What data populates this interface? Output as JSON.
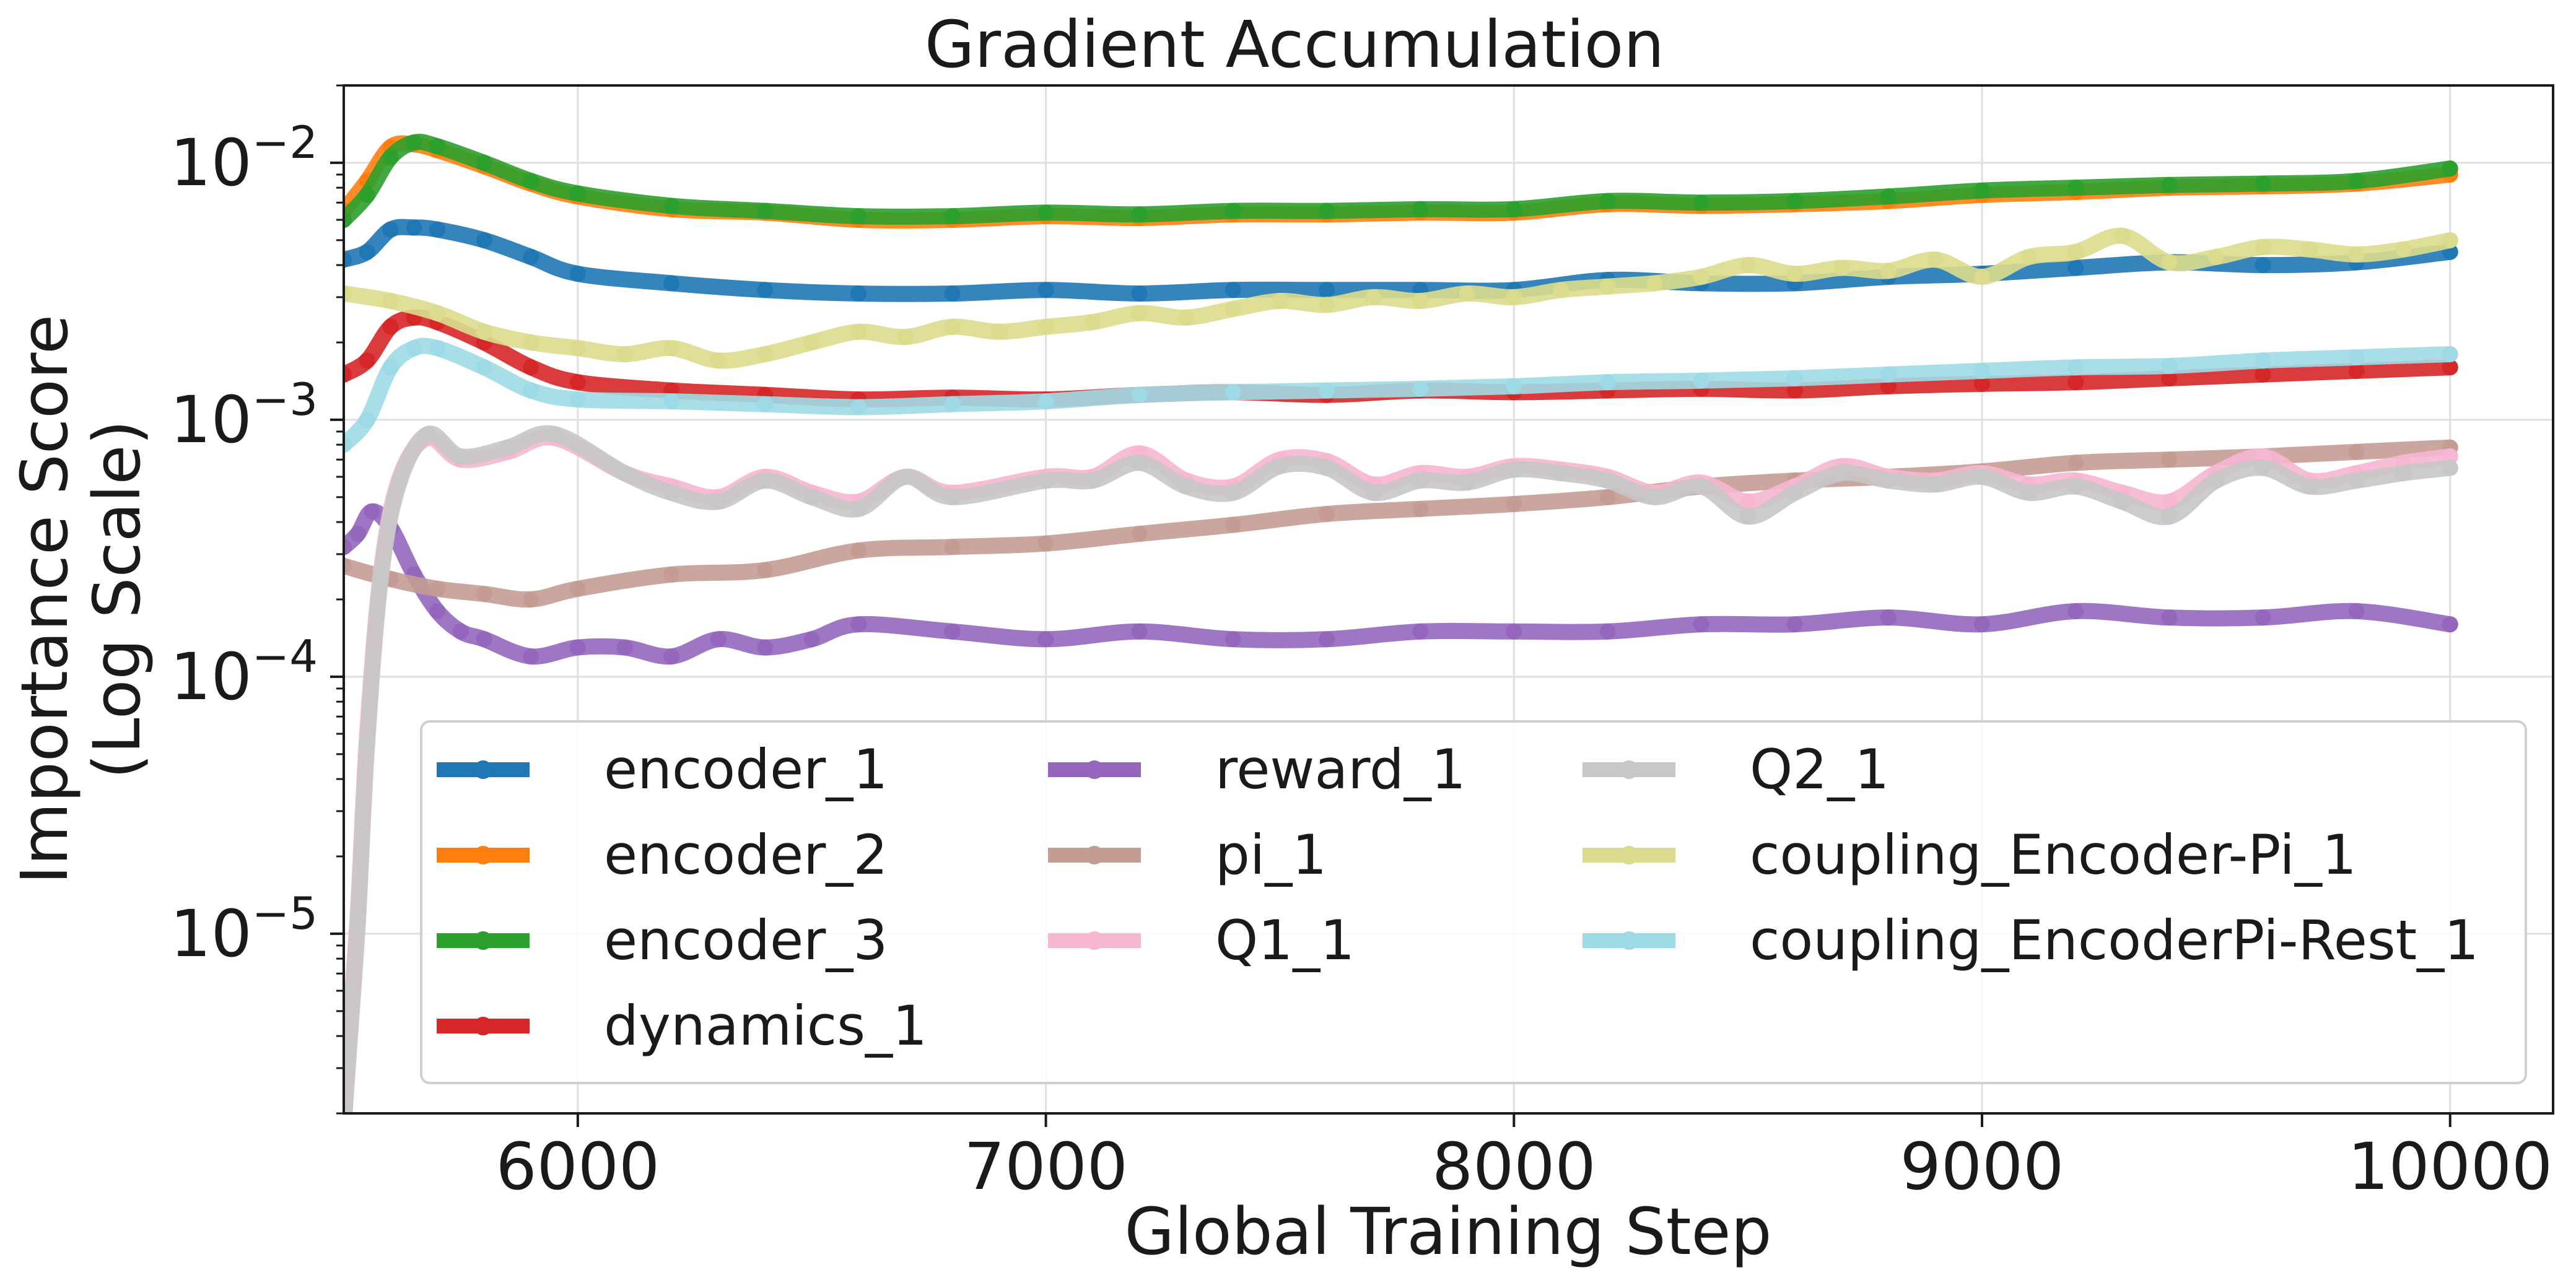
{
  "chart_data": {
    "type": "line",
    "title": "Gradient Accumulation",
    "xlabel": "Global Training Step",
    "ylabel": [
      "Importance Score",
      "(Log Scale)"
    ],
    "xlim": [
      5500,
      10220
    ],
    "ylim": [
      2e-06,
      0.02
    ],
    "yscale": "log",
    "grid": true,
    "legend": {
      "placement": "lower-center",
      "columns": 3
    },
    "x_ticks": [
      6000,
      7000,
      8000,
      9000,
      10000
    ],
    "y_ticks": [
      {
        "value": 0.01,
        "base": "10",
        "exp": "−2"
      },
      {
        "value": 0.001,
        "base": "10",
        "exp": "−3"
      },
      {
        "value": 0.0001,
        "base": "10",
        "exp": "−4"
      },
      {
        "value": 1e-05,
        "base": "10",
        "exp": "−5"
      }
    ],
    "series": [
      {
        "name": "encoder_1",
        "color": "#1f77b4",
        "x": [
          5500,
          5550,
          5600,
          5650,
          5700,
          5800,
          5900,
          6000,
          6200,
          6400,
          6600,
          6800,
          7000,
          7200,
          7400,
          7600,
          7800,
          8000,
          8200,
          8400,
          8600,
          8800,
          9000,
          9200,
          9400,
          9600,
          9800,
          10000
        ],
        "y": [
          0.0042,
          0.0045,
          0.0055,
          0.0056,
          0.0055,
          0.005,
          0.0043,
          0.0037,
          0.0034,
          0.0032,
          0.0031,
          0.0031,
          0.0032,
          0.0031,
          0.0032,
          0.0032,
          0.0032,
          0.0032,
          0.0035,
          0.0034,
          0.0034,
          0.0036,
          0.0037,
          0.0039,
          0.0041,
          0.004,
          0.0041,
          0.0045
        ]
      },
      {
        "name": "encoder_2",
        "color": "#ff7f0e",
        "x": [
          5500,
          5550,
          5600,
          5650,
          5700,
          5800,
          5900,
          6000,
          6200,
          6400,
          6600,
          6800,
          7000,
          7200,
          7400,
          7600,
          7800,
          8000,
          8200,
          8400,
          8600,
          8800,
          9000,
          9200,
          9400,
          9600,
          9800,
          10000
        ],
        "y": [
          0.0065,
          0.0085,
          0.0115,
          0.0118,
          0.0112,
          0.0097,
          0.0083,
          0.0074,
          0.0066,
          0.0064,
          0.006,
          0.006,
          0.0062,
          0.0061,
          0.0063,
          0.0063,
          0.0064,
          0.0064,
          0.0069,
          0.0068,
          0.0069,
          0.0071,
          0.0075,
          0.0077,
          0.008,
          0.0081,
          0.0083,
          0.009
        ]
      },
      {
        "name": "encoder_3",
        "color": "#2ca02c",
        "x": [
          5500,
          5550,
          5600,
          5650,
          5700,
          5800,
          5900,
          6000,
          6200,
          6400,
          6600,
          6800,
          7000,
          7200,
          7400,
          7600,
          7800,
          8000,
          8200,
          8400,
          8600,
          8800,
          9000,
          9200,
          9400,
          9600,
          9800,
          10000
        ],
        "y": [
          0.006,
          0.0075,
          0.0105,
          0.012,
          0.0116,
          0.01,
          0.0085,
          0.0076,
          0.0068,
          0.0065,
          0.0062,
          0.0062,
          0.0064,
          0.0063,
          0.0065,
          0.0065,
          0.0066,
          0.0066,
          0.0071,
          0.007,
          0.0071,
          0.0074,
          0.0078,
          0.008,
          0.0082,
          0.0083,
          0.0085,
          0.0095
        ]
      },
      {
        "name": "dynamics_1",
        "color": "#d62728",
        "x": [
          5500,
          5550,
          5600,
          5650,
          5700,
          5800,
          5900,
          6000,
          6200,
          6400,
          6600,
          6800,
          7000,
          7200,
          7400,
          7600,
          7800,
          8000,
          8200,
          8400,
          8600,
          8800,
          9000,
          9200,
          9400,
          9600,
          9800,
          10000
        ],
        "y": [
          0.0015,
          0.0017,
          0.0023,
          0.0025,
          0.0024,
          0.002,
          0.0016,
          0.0014,
          0.0013,
          0.00125,
          0.0012,
          0.00122,
          0.0012,
          0.00125,
          0.00128,
          0.00125,
          0.0013,
          0.00128,
          0.0013,
          0.00132,
          0.0013,
          0.00135,
          0.00138,
          0.0014,
          0.00145,
          0.0015,
          0.00155,
          0.0016
        ]
      },
      {
        "name": "reward_1",
        "color": "#9467bd",
        "x": [
          5500,
          5530,
          5560,
          5600,
          5650,
          5700,
          5750,
          5800,
          5900,
          6000,
          6100,
          6200,
          6300,
          6400,
          6500,
          6600,
          6800,
          7000,
          7200,
          7400,
          7600,
          7800,
          8000,
          8200,
          8400,
          8600,
          8800,
          9000,
          9200,
          9400,
          9600,
          9800,
          10000
        ],
        "y": [
          0.00032,
          0.00036,
          0.00044,
          0.00038,
          0.00025,
          0.00018,
          0.00015,
          0.00014,
          0.00012,
          0.00013,
          0.00013,
          0.00012,
          0.00014,
          0.00013,
          0.00014,
          0.00016,
          0.00015,
          0.00014,
          0.00015,
          0.00014,
          0.00014,
          0.00015,
          0.00015,
          0.00015,
          0.00016,
          0.00016,
          0.00017,
          0.00016,
          0.00018,
          0.00017,
          0.00017,
          0.00018,
          0.00016
        ]
      },
      {
        "name": "pi_1",
        "color": "#c49c94",
        "x": [
          5500,
          5600,
          5700,
          5800,
          5900,
          6000,
          6200,
          6400,
          6600,
          6800,
          7000,
          7200,
          7400,
          7600,
          7800,
          8000,
          8200,
          8400,
          8600,
          8800,
          9000,
          9200,
          9400,
          9600,
          9800,
          10000
        ],
        "y": [
          0.00027,
          0.00024,
          0.00022,
          0.00021,
          0.0002,
          0.00022,
          0.00025,
          0.00026,
          0.00031,
          0.00032,
          0.00033,
          0.00036,
          0.00039,
          0.00043,
          0.00045,
          0.00047,
          0.0005,
          0.00055,
          0.00058,
          0.0006,
          0.00063,
          0.00068,
          0.0007,
          0.00072,
          0.00075,
          0.00078
        ]
      },
      {
        "name": "Q1_1",
        "color": "#f7b6d2",
        "x": [
          5500,
          5510,
          5530,
          5550,
          5580,
          5620,
          5680,
          5750,
          5850,
          5950,
          6100,
          6200,
          6300,
          6400,
          6500,
          6600,
          6700,
          6800,
          7000,
          7100,
          7200,
          7300,
          7400,
          7500,
          7600,
          7700,
          7800,
          7900,
          8000,
          8100,
          8200,
          8300,
          8400,
          8500,
          8600,
          8700,
          8800,
          8900,
          9000,
          9100,
          9200,
          9300,
          9400,
          9500,
          9600,
          9700,
          9800,
          9900,
          10000
        ],
        "y": [
          1.8e-06,
          3.5e-06,
          1.2e-05,
          6e-05,
          0.00026,
          0.0006,
          0.00085,
          0.0007,
          0.00075,
          0.00085,
          0.00062,
          0.00055,
          0.0005,
          0.0006,
          0.00052,
          0.00048,
          0.0006,
          0.00052,
          0.0006,
          0.0006,
          0.00074,
          0.00058,
          0.00055,
          0.0007,
          0.00069,
          0.00056,
          0.00062,
          0.0006,
          0.00066,
          0.00064,
          0.0006,
          0.00052,
          0.00057,
          0.00048,
          0.00055,
          0.00066,
          0.0006,
          0.00058,
          0.00062,
          0.00056,
          0.00058,
          0.00052,
          0.00048,
          0.00062,
          0.00072,
          0.00058,
          0.00062,
          0.00068,
          0.00072
        ]
      },
      {
        "name": "Q2_1",
        "color": "#c7c7c7",
        "x": [
          5500,
          5510,
          5530,
          5550,
          5580,
          5620,
          5680,
          5750,
          5850,
          5950,
          6100,
          6200,
          6300,
          6400,
          6500,
          6600,
          6700,
          6800,
          7000,
          7100,
          7200,
          7300,
          7400,
          7500,
          7600,
          7700,
          7800,
          7900,
          8000,
          8100,
          8200,
          8300,
          8400,
          8500,
          8600,
          8700,
          8800,
          8900,
          9000,
          9100,
          9200,
          9300,
          9400,
          9500,
          9600,
          9700,
          9800,
          9900,
          10000
        ],
        "y": [
          1.8e-06,
          3.3e-06,
          1.1e-05,
          5.5e-05,
          0.00025,
          0.00058,
          0.00088,
          0.00072,
          0.00078,
          0.00088,
          0.00062,
          0.00052,
          0.00048,
          0.00058,
          0.0005,
          0.00045,
          0.0006,
          0.0005,
          0.00058,
          0.00058,
          0.00068,
          0.00055,
          0.00052,
          0.00066,
          0.00065,
          0.00052,
          0.00058,
          0.00057,
          0.00064,
          0.00062,
          0.00058,
          0.0005,
          0.00055,
          0.00042,
          0.00052,
          0.00062,
          0.00058,
          0.00056,
          0.0006,
          0.00052,
          0.00055,
          0.00048,
          0.00042,
          0.00058,
          0.00065,
          0.00055,
          0.00058,
          0.00062,
          0.00065
        ]
      },
      {
        "name": "coupling_Encoder-Pi_1",
        "color": "#dbdb8d",
        "x": [
          5500,
          5600,
          5700,
          5800,
          5900,
          6000,
          6100,
          6200,
          6300,
          6400,
          6500,
          6600,
          6700,
          6800,
          6900,
          7000,
          7100,
          7200,
          7300,
          7400,
          7500,
          7600,
          7700,
          7800,
          7900,
          8000,
          8100,
          8200,
          8300,
          8400,
          8500,
          8600,
          8700,
          8800,
          8900,
          9000,
          9100,
          9200,
          9300,
          9400,
          9500,
          9600,
          9700,
          9800,
          9900,
          10000
        ],
        "y": [
          0.0031,
          0.0029,
          0.0026,
          0.0022,
          0.002,
          0.0019,
          0.0018,
          0.0019,
          0.0017,
          0.0018,
          0.002,
          0.0022,
          0.0021,
          0.0023,
          0.0022,
          0.0023,
          0.0024,
          0.0026,
          0.0025,
          0.0027,
          0.0029,
          0.0028,
          0.003,
          0.0029,
          0.0031,
          0.003,
          0.0032,
          0.0033,
          0.0034,
          0.0036,
          0.004,
          0.0037,
          0.0039,
          0.0038,
          0.0042,
          0.0036,
          0.0043,
          0.0045,
          0.0052,
          0.0041,
          0.0043,
          0.0047,
          0.0046,
          0.0044,
          0.0046,
          0.005
        ]
      },
      {
        "name": "coupling_EncoderPi-Rest_1",
        "color": "#9edae5",
        "x": [
          5500,
          5550,
          5600,
          5650,
          5700,
          5800,
          5900,
          6000,
          6200,
          6400,
          6600,
          6800,
          7000,
          7200,
          7400,
          7600,
          7800,
          8000,
          8200,
          8400,
          8600,
          8800,
          9000,
          9200,
          9400,
          9600,
          9800,
          10000
        ],
        "y": [
          0.0008,
          0.001,
          0.0016,
          0.0019,
          0.0019,
          0.0016,
          0.0013,
          0.0012,
          0.00118,
          0.00115,
          0.00112,
          0.00115,
          0.00118,
          0.00125,
          0.00128,
          0.0013,
          0.00132,
          0.00135,
          0.0014,
          0.00142,
          0.00145,
          0.0015,
          0.00155,
          0.0016,
          0.00162,
          0.0017,
          0.00175,
          0.0018
        ]
      }
    ]
  }
}
